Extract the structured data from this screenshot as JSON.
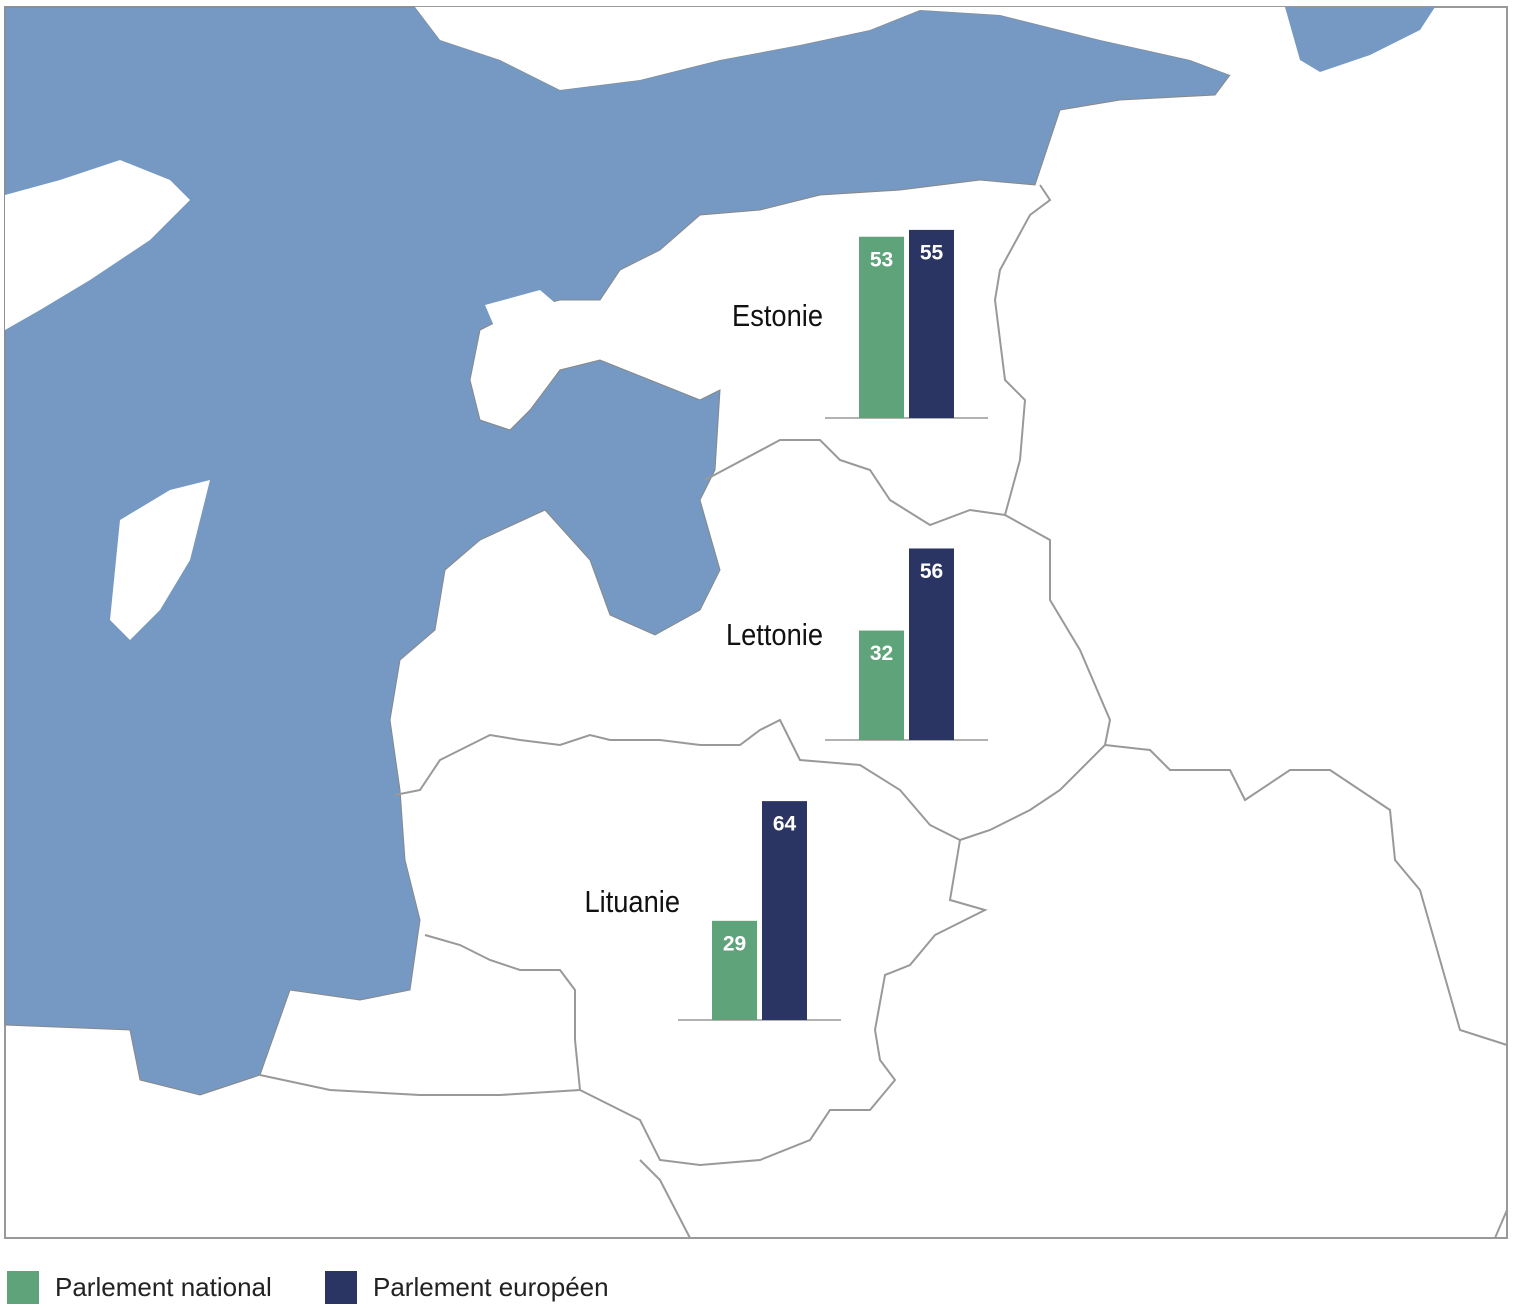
{
  "chart_data": {
    "type": "bar",
    "categories": [
      "Estonie",
      "Lettonie",
      "Lituanie"
    ],
    "series": [
      {
        "name": "Parlement national",
        "color": "#5fa37a",
        "values": [
          53,
          32,
          29
        ]
      },
      {
        "name": "Parlement européen",
        "color": "#2a3563",
        "values": [
          55,
          56,
          64
        ]
      }
    ]
  }
}
